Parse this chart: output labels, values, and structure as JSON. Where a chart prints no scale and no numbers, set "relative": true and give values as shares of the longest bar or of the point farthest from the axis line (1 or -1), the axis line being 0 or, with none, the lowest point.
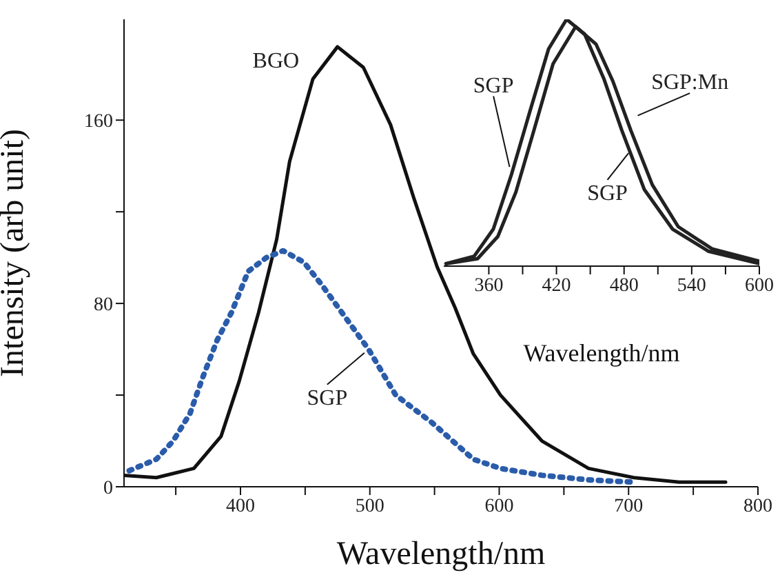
{
  "chart_data": [
    {
      "type": "line",
      "xlabel": "Wavelength/nm",
      "ylabel": "Intensity (arb unit)",
      "xlim": [
        310,
        800
      ],
      "ylim": [
        0,
        204
      ],
      "xticks": [
        {
          "value": 350,
          "label": null
        },
        400,
        {
          "value": 450,
          "label": null
        },
        500,
        {
          "value": 550,
          "label": null
        },
        600,
        {
          "value": 650,
          "label": null
        },
        700,
        {
          "value": 750,
          "label": null
        },
        800
      ],
      "yticks": [
        0,
        {
          "value": 40,
          "label": null
        },
        80,
        {
          "value": 120,
          "label": null
        },
        160
      ],
      "legend": false,
      "grid": false,
      "series": [
        {
          "color": "#111111",
          "line_style": "solid",
          "x": [
            310,
            335,
            364,
            385,
            399,
            414,
            428,
            438,
            456,
            475,
            495,
            516,
            534,
            552,
            566,
            580,
            601,
            633,
            669,
            704,
            739,
            775
          ],
          "values": [
            5,
            4,
            8,
            22,
            46,
            76,
            108,
            142,
            178,
            192,
            183,
            158,
            126,
            96,
            78,
            58,
            40,
            20,
            8,
            4,
            2,
            2
          ]
        },
        {
          "color": "#2a5caa",
          "line_style": "dotted",
          "x": [
            314,
            335,
            348,
            361,
            371,
            382,
            393,
            406,
            420,
            433,
            449,
            463,
            481,
            499,
            520,
            548,
            580,
            601,
            633,
            669,
            704
          ],
          "values": [
            7,
            12,
            20,
            32,
            48,
            64,
            76,
            94,
            100,
            103,
            98,
            88,
            74,
            60,
            40,
            28,
            12,
            8,
            5,
            3,
            2
          ]
        }
      ],
      "annotations": [
        {
          "text": "BGO",
          "x": 456,
          "y": 178
        },
        {
          "text": "SGP",
          "x": 499,
          "y": 60
        }
      ]
    },
    {
      "type": "line",
      "relative": true,
      "xlabel": "Wavelength/nm",
      "xlim": [
        320,
        600
      ],
      "xticks": [
        360,
        {
          "value": 390,
          "label": null
        },
        420,
        {
          "value": 450,
          "label": null
        },
        480,
        {
          "value": 510,
          "label": null
        },
        540,
        {
          "value": 570,
          "label": null
        },
        600
      ],
      "legend": false,
      "grid": false,
      "series": [
        {
          "color": "#222222",
          "x": [
            322,
            347,
            364,
            380,
            396,
            413,
            429,
            445,
            462,
            478,
            498,
            523,
            555,
            600
          ],
          "values": [
            0.01,
            0.04,
            0.15,
            0.37,
            0.62,
            0.88,
            1.0,
            0.94,
            0.76,
            0.55,
            0.31,
            0.15,
            0.06,
            0.01
          ]
        },
        {
          "color": "#222222",
          "x": [
            322,
            350,
            368,
            384,
            400,
            417,
            437,
            455,
            470,
            486,
            505,
            528,
            558,
            600
          ],
          "values": [
            0.01,
            0.03,
            0.12,
            0.3,
            0.55,
            0.82,
            0.97,
            0.9,
            0.75,
            0.55,
            0.33,
            0.16,
            0.07,
            0.02
          ]
        }
      ],
      "annotations": [
        {
          "text": "SGP",
          "x": 380,
          "y": 0.37
        },
        {
          "text": "SGP:Mn",
          "x": 487,
          "y": 0.6
        },
        {
          "text": "SGP",
          "x": 486,
          "y": 0.47
        }
      ]
    }
  ]
}
